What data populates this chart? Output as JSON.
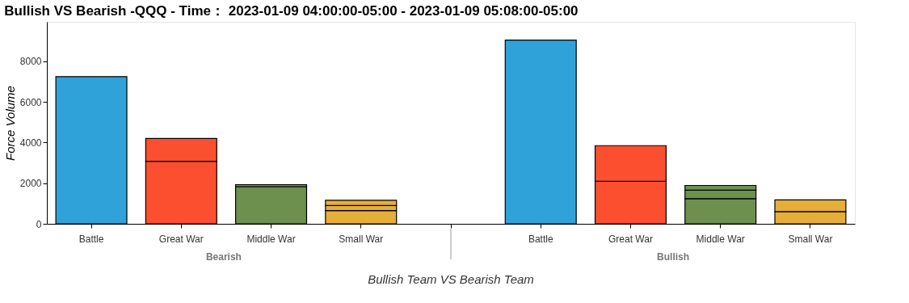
{
  "chart_data": {
    "type": "bar",
    "stacked": true,
    "title": "Bullish VS Bearish -QQQ - Time： 2023-01-09 04:00:00-05:00 - 2023-01-09 05:08:00-05:00",
    "xlabel": "Bullish Team VS Bearish Team",
    "ylabel": "Force Volume",
    "categories": [
      "Battle",
      "Great War",
      "Middle War",
      "Small War",
      "Battle",
      "Great War",
      "Middle War",
      "Small War"
    ],
    "annotations": [
      "Bearish",
      "Bullish"
    ],
    "series": [
      {
        "colors": [
          "#30a2da",
          "#fc4f30",
          "#6d904f",
          "#e5ae38",
          "#30a2da",
          "#fc4f30",
          "#6d904f",
          "#e5ae38"
        ],
        "values": [
          7250,
          3080,
          1830,
          650,
          9050,
          2100,
          1240,
          600
        ]
      },
      {
        "colors": [
          "#30a2da",
          "#fc4f30",
          "#6d904f",
          "#e5ae38",
          "#30a2da",
          "#fc4f30",
          "#6d904f",
          "#e5ae38"
        ],
        "values": [
          null,
          1120,
          100,
          250,
          null,
          1750,
          420,
          580
        ]
      },
      {
        "colors": [
          "#30a2da",
          "#fc4f30",
          "#6d904f",
          "#e5ae38",
          "#30a2da",
          "#fc4f30",
          "#6d904f",
          "#e5ae38"
        ],
        "values": [
          null,
          null,
          null,
          260,
          null,
          null,
          230,
          null
        ]
      }
    ],
    "ylim": [
      0,
      9950
    ],
    "yticks": [
      0,
      2000,
      4000,
      6000,
      8000
    ],
    "grid": false
  }
}
